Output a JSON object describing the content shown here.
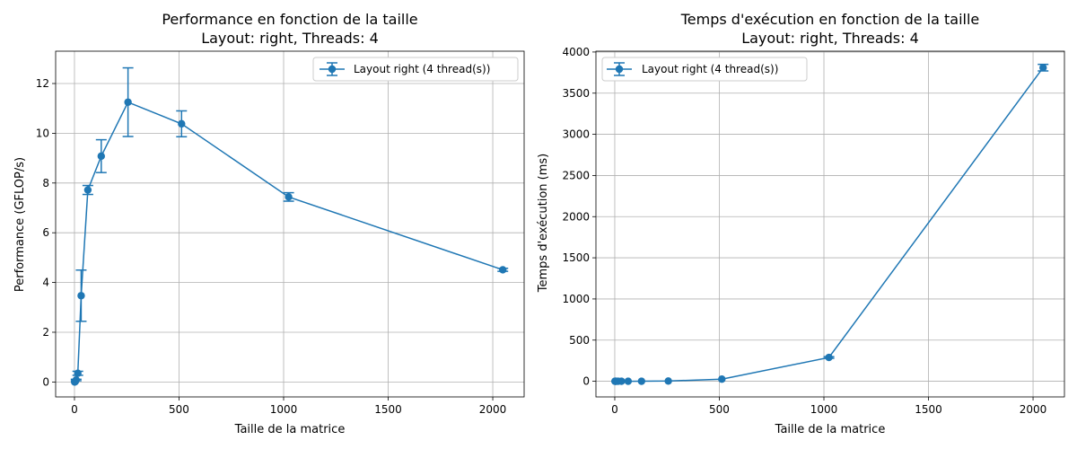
{
  "chart_data": [
    {
      "type": "line",
      "title": "Performance en fonction de la taille",
      "subtitle": "Layout: right, Threads: 4",
      "xlabel": "Taille de la matrice",
      "ylabel": "Performance (GFLOP/s)",
      "xlim": [
        -90,
        2150
      ],
      "ylim": [
        -0.6,
        13.3
      ],
      "xticks": [
        0,
        500,
        1000,
        1500,
        2000
      ],
      "yticks": [
        0,
        2,
        4,
        6,
        8,
        10,
        12
      ],
      "grid": true,
      "legend_position": "top-right",
      "series": [
        {
          "name": "Layout right (4 thread(s))",
          "color": "#1f77b4",
          "x": [
            1,
            2,
            4,
            8,
            16,
            32,
            64,
            128,
            256,
            512,
            1024,
            2048
          ],
          "y": [
            0.0,
            0.01,
            0.02,
            0.08,
            0.35,
            3.47,
            7.72,
            9.08,
            11.25,
            10.38,
            7.44,
            4.51
          ],
          "err": [
            0.0,
            0.01,
            0.01,
            0.03,
            0.08,
            1.03,
            0.18,
            0.66,
            1.38,
            0.52,
            0.17,
            0.06
          ]
        }
      ]
    },
    {
      "type": "line",
      "title": "Temps d'exécution en fonction de la taille",
      "subtitle": "Layout: right, Threads: 4",
      "xlabel": "Taille de la matrice",
      "ylabel": "Temps d'exécution (ms)",
      "xlim": [
        -90,
        2150
      ],
      "ylim": [
        -190,
        4010
      ],
      "xticks": [
        0,
        500,
        1000,
        1500,
        2000
      ],
      "yticks": [
        0,
        500,
        1000,
        1500,
        2000,
        2500,
        3000,
        3500,
        4000
      ],
      "grid": true,
      "legend_position": "top-left",
      "series": [
        {
          "name": "Layout right (4 thread(s))",
          "color": "#1f77b4",
          "x": [
            1,
            2,
            4,
            8,
            16,
            32,
            64,
            128,
            256,
            512,
            1024,
            2048
          ],
          "y": [
            0,
            0,
            0,
            0,
            0,
            0.1,
            0.2,
            0.5,
            3,
            26,
            289,
            3810
          ],
          "err": [
            0,
            0,
            0,
            0,
            0,
            0,
            0,
            0,
            0.5,
            2,
            10,
            40
          ]
        }
      ]
    }
  ]
}
